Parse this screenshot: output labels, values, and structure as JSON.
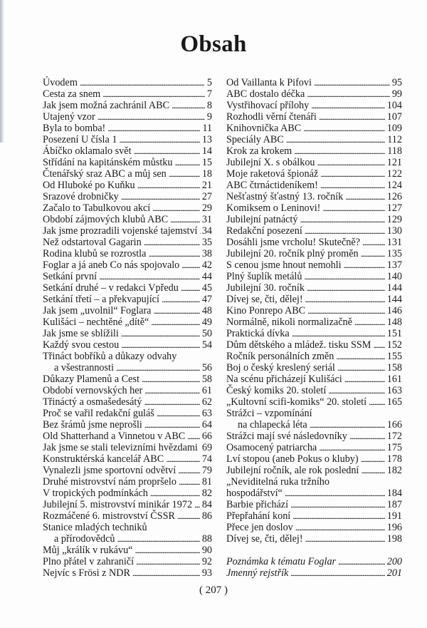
{
  "title": "Obsah",
  "page_number": "( 207 )",
  "left": [
    {
      "title": "Úvodem",
      "page": "5"
    },
    {
      "title": "Cesta za snem",
      "page": "7"
    },
    {
      "title": "Jak jsem možná zachránil ABC",
      "page": "8"
    },
    {
      "title": "Utajený vzor",
      "page": "9"
    },
    {
      "title": "Byla to bomba!",
      "page": "11"
    },
    {
      "title": "Posezení U čísla 1",
      "page": "13"
    },
    {
      "title": "Ábíčko oklamalo svět",
      "page": "14"
    },
    {
      "title": "Střídání na kapitánském můstku",
      "page": "15"
    },
    {
      "title": "Čtenářský sraz ABC a můj sen",
      "page": "18"
    },
    {
      "title": "Od Hluboké po Kuňku",
      "page": "21"
    },
    {
      "title": "Srazové drobničky",
      "page": "27"
    },
    {
      "title": "Začalo to Tabulkovou akcí",
      "page": "29"
    },
    {
      "title": "Období zájmových klubů ABC",
      "page": "31"
    },
    {
      "title": "Jak jsme prozradili vojenské tajemství",
      "page": "34"
    },
    {
      "title": "Než odstartoval Gagarin",
      "page": "35"
    },
    {
      "title": "Rodina klubů se rozrostla",
      "page": "38"
    },
    {
      "title": "Foglar a já aneb Co nás spojovalo",
      "page": "42"
    },
    {
      "title": "Setkání první",
      "page": "44"
    },
    {
      "title": "Setkání druhé – v redakci Vpředu",
      "page": "45"
    },
    {
      "title": "Setkání třetí – a překvapující",
      "page": "47"
    },
    {
      "title": "Jak jsem „uvolnil“ Foglara",
      "page": "48"
    },
    {
      "title": "Kulišáci – nechtěné „dítě“",
      "page": "49"
    },
    {
      "title": "Jak jsme se sblížili",
      "page": "50"
    },
    {
      "title": "Každý svou cestou",
      "page": "54"
    },
    {
      "title": "Třináct bobříků a důkazy odvahy",
      "cont": "a všestrannosti",
      "page": "56"
    },
    {
      "title": "Důkazy Plamenů a Cest",
      "page": "58"
    },
    {
      "title": "Období vernovských her",
      "page": "61"
    },
    {
      "title": "Třináctý a osmašedesátý",
      "page": "62"
    },
    {
      "title": "Proč se vařil redakční guláš",
      "page": "63"
    },
    {
      "title": "Bez šrámů jsme neprošli",
      "page": "64"
    },
    {
      "title": "Old Shatterhand a Vinnetou v ABC",
      "page": "66"
    },
    {
      "title": "Jak jsme se stali televizními hvězdami",
      "page": "69"
    },
    {
      "title": "Konstruktérská kancelář ABC",
      "page": "74"
    },
    {
      "title": "Vynalezli jsme sportovní odvětví",
      "page": "79"
    },
    {
      "title": "Druhé mistrovství nám propršelo",
      "page": "81"
    },
    {
      "title": "V tropických podmínkách",
      "page": "82"
    },
    {
      "title": "Jubilejní 5. mistrovství minikár 1972",
      "page": "84"
    },
    {
      "title": "Rozmáčené 6. mistrovství ČSSR",
      "page": "86"
    },
    {
      "title": "Stanice mladých techniků",
      "cont": "a přírodovědců",
      "page": "88"
    },
    {
      "title": "Můj „králík v rukávu“",
      "page": "90"
    },
    {
      "title": "Plno přátel v zahraničí",
      "page": "92"
    },
    {
      "title": "Nejvíc s Frösi z NDR",
      "page": "93"
    }
  ],
  "right": [
    {
      "title": "Od Vaillanta k Pifovi",
      "page": "95"
    },
    {
      "title": "ABC dostalo déčka",
      "page": "99"
    },
    {
      "title": "Vystřihovací přílohy",
      "page": "104"
    },
    {
      "title": "Rozhodli věrní čtenáři",
      "page": "107"
    },
    {
      "title": "Knihovnička ABC",
      "page": "109"
    },
    {
      "title": "Speciály ABC",
      "page": "112"
    },
    {
      "title": "Krok za krokem",
      "page": "118"
    },
    {
      "title": "Jubilejní X. s obálkou",
      "page": "121"
    },
    {
      "title": "Moje raketová špionáž",
      "page": "122"
    },
    {
      "title": "ABC čtrnáctideníkem!",
      "page": "124"
    },
    {
      "title": "Nešťastný šťastný 13. ročník",
      "page": "126"
    },
    {
      "title": "Komiksem o Leninovi!",
      "page": "127"
    },
    {
      "title": "Jubilejní patnáctý",
      "page": "129"
    },
    {
      "title": "Redakční posezení",
      "page": "130"
    },
    {
      "title": "Dosáhli jsme vrcholu! Skutečně?",
      "page": "131"
    },
    {
      "title": "Jubilejní 20. ročník plný proměn",
      "page": "135"
    },
    {
      "title": "S cenou jsme hnout nemohli",
      "page": "137"
    },
    {
      "title": "Plný šuplík metálů",
      "page": "140"
    },
    {
      "title": "Jubilejní 30. ročník",
      "page": "144"
    },
    {
      "title": "Dívej se, čti, dělej!",
      "page": "144"
    },
    {
      "title": "Kino Ponrepo ABC",
      "page": "146"
    },
    {
      "title": "Normálně, nikoli normalizačně",
      "page": "148"
    },
    {
      "title": "Praktická dívka",
      "page": "151"
    },
    {
      "title": "Dům dětského a mládež. tisku SSM",
      "page": "152"
    },
    {
      "title": "Ročník personálních změn",
      "page": "155"
    },
    {
      "title": "Boj o český kreslený seriál",
      "page": "158"
    },
    {
      "title": "Na scénu přicházejí Kulišáci",
      "page": "161"
    },
    {
      "title": "Český komiks 20. století",
      "page": "163"
    },
    {
      "title": "„Kultovní scifi-komiks“ 20. století",
      "page": "165"
    },
    {
      "title": "Strážci – vzpomínání",
      "cont": "na chlapecká léta",
      "page": "166"
    },
    {
      "title": "Strážci mají své následovníky",
      "page": "172"
    },
    {
      "title": "Osamocený patriarcha",
      "page": "175"
    },
    {
      "title": "Lví stopou (aneb Pokus o kluby)",
      "page": "178"
    },
    {
      "title": "Jubilejní ročník, ale rok poslední",
      "page": "182"
    },
    {
      "title": "„Neviditelná ruka tržního",
      "cont": "hospodářství“",
      "cont_noindent": true,
      "page": "184"
    },
    {
      "title": "Barbie přichází",
      "page": "187"
    },
    {
      "title": "Přepřahání koní",
      "page": "191"
    },
    {
      "title": "Přece jen doslov",
      "page": "196"
    },
    {
      "title": "Dívej se, čti, dělej!",
      "page": "198"
    },
    {
      "blank": true
    },
    {
      "title": "Poznámka k tématu Foglar",
      "page": "200",
      "italic": true
    },
    {
      "title": "Jmenný rejstřík",
      "page": "201",
      "italic": true
    }
  ]
}
